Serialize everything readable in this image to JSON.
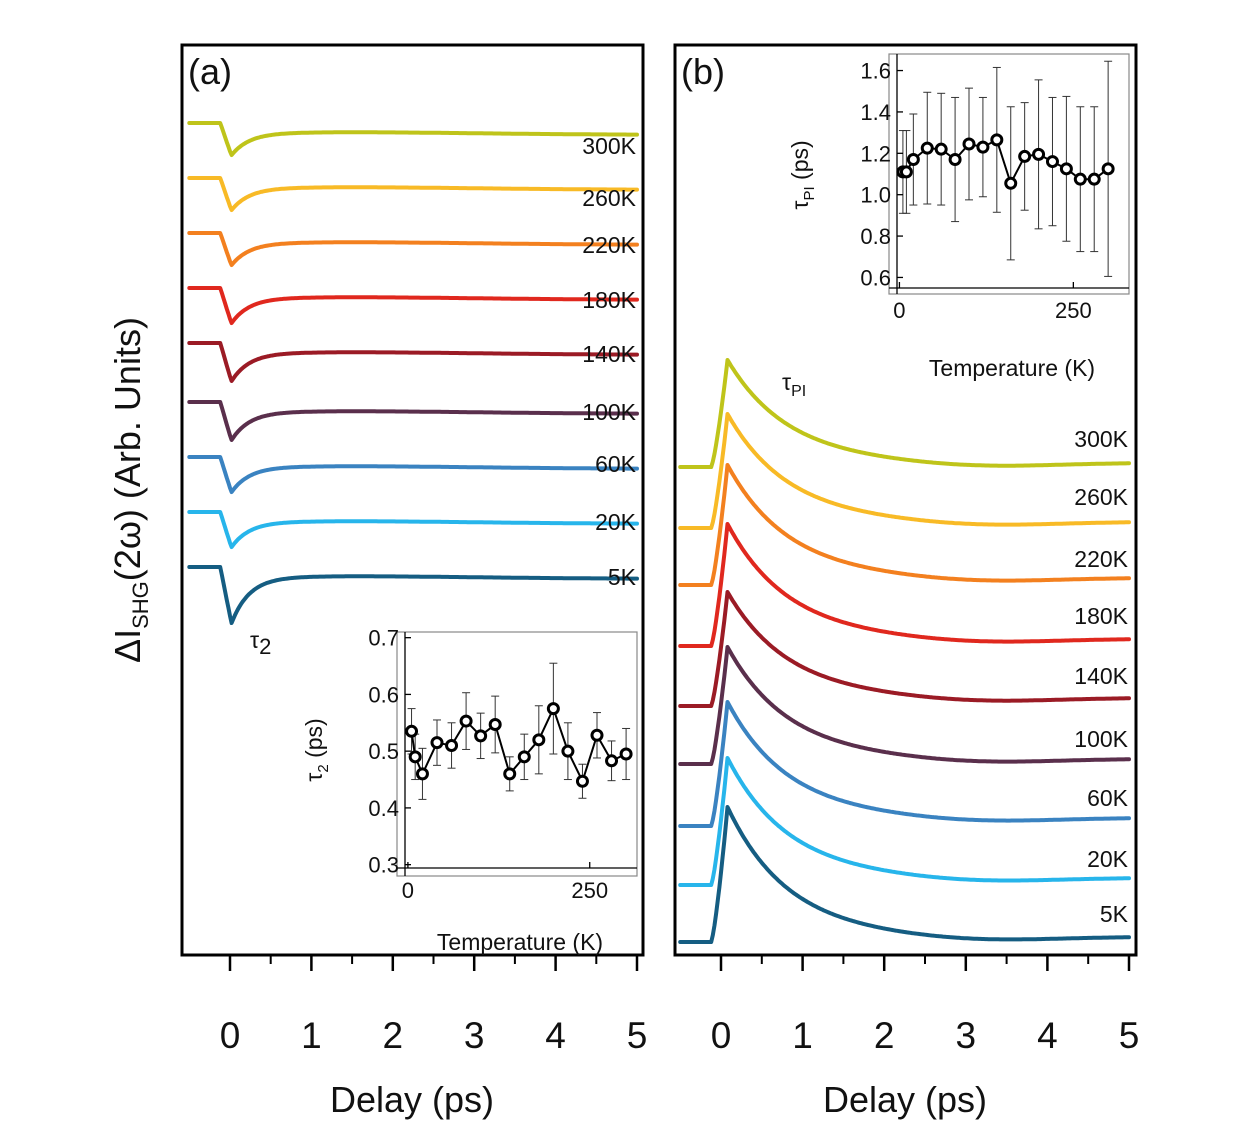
{
  "figure": {
    "ylabel": {
      "prefix": "ΔI",
      "sub": "SHG",
      "suffix": "(2ω) (Arb. Units)"
    }
  },
  "panel_a": {
    "label": "(a)",
    "xlabel": "Delay (ps)",
    "xticks": [
      "0",
      "1",
      "2",
      "3",
      "4",
      "5"
    ],
    "tau_label": "τ",
    "tau_sub": "2",
    "inset": {
      "ylabel": "τ",
      "ylabel_sub": "2",
      "ylabel_unit": " (ps)",
      "xlabel": "Temperature (K)",
      "xticks": [
        "0",
        "250"
      ],
      "yticks": [
        "0.3",
        "0.4",
        "0.5",
        "0.6",
        "0.7"
      ]
    }
  },
  "panel_b": {
    "label": "(b)",
    "xlabel": "Delay (ps)",
    "xticks": [
      "0",
      "1",
      "2",
      "3",
      "4",
      "5"
    ],
    "tau_label": "τ",
    "tau_sub": "PI",
    "inset": {
      "ylabel": "τ",
      "ylabel_sub": "PI",
      "ylabel_unit": " (ps)",
      "xlabel": "Temperature (K)",
      "xticks": [
        "0",
        "250"
      ],
      "yticks": [
        "0.6",
        "0.8",
        "1.0",
        "1.2",
        "1.4",
        "1.6"
      ]
    }
  },
  "colors": {
    "300K": "#bfc41a",
    "260K": "#f8ba26",
    "220K": "#f3801f",
    "180K": "#e0281e",
    "140K": "#9b1b25",
    "100K": "#5a2f4c",
    "60K": "#3a83c1",
    "20K": "#27b5eb",
    "5K": "#155d82"
  },
  "chart_data": [
    {
      "type": "line",
      "panel": "a",
      "xlabel": "Delay (ps)",
      "ylabel": "ΔI_SHG(2ω) (Arb. Units)",
      "xlim": [
        -0.6,
        5
      ],
      "series": [
        {
          "name": "300K",
          "offset": 8,
          "dip_depth": 0.55,
          "level": -0.18
        },
        {
          "name": "260K",
          "offset": 7,
          "dip_depth": 0.55,
          "level": -0.18
        },
        {
          "name": "220K",
          "offset": 6,
          "dip_depth": 0.55,
          "level": -0.18
        },
        {
          "name": "180K",
          "offset": 5,
          "dip_depth": 0.6,
          "level": -0.18
        },
        {
          "name": "140K",
          "offset": 4,
          "dip_depth": 0.65,
          "level": -0.18
        },
        {
          "name": "100K",
          "offset": 3,
          "dip_depth": 0.65,
          "level": -0.18
        },
        {
          "name": "60K",
          "offset": 2,
          "dip_depth": 0.6,
          "level": -0.18
        },
        {
          "name": "20K",
          "offset": 1,
          "dip_depth": 0.6,
          "level": -0.18
        },
        {
          "name": "5K",
          "offset": 0,
          "dip_depth": 0.95,
          "level": -0.18
        }
      ]
    },
    {
      "type": "scatter",
      "panel": "a-inset",
      "xlabel": "Temperature (K)",
      "ylabel": "τ2 (ps)",
      "xlim": [
        -15,
        315
      ],
      "ylim": [
        0.28,
        0.71
      ],
      "x": [
        5,
        10,
        20,
        40,
        60,
        80,
        100,
        120,
        140,
        160,
        180,
        200,
        220,
        240,
        260,
        280,
        300
      ],
      "y": [
        0.535,
        0.49,
        0.46,
        0.515,
        0.51,
        0.553,
        0.527,
        0.547,
        0.46,
        0.49,
        0.52,
        0.575,
        0.5,
        0.447,
        0.528,
        0.483,
        0.495
      ],
      "yerr": [
        0.04,
        0.04,
        0.045,
        0.04,
        0.04,
        0.05,
        0.04,
        0.05,
        0.03,
        0.04,
        0.06,
        0.08,
        0.05,
        0.03,
        0.04,
        0.035,
        0.045
      ]
    },
    {
      "type": "line",
      "panel": "b",
      "xlabel": "Delay (ps)",
      "ylabel": "ΔI_SHG(2ω) (Arb. Units)",
      "xlim": [
        -0.5,
        5
      ],
      "series": [
        {
          "name": "300K",
          "offset": 8,
          "peak": 1.0,
          "tail": 0.0
        },
        {
          "name": "260K",
          "offset": 7,
          "peak": 1.0,
          "tail": 0.0
        },
        {
          "name": "220K",
          "offset": 6,
          "peak": 1.0,
          "tail": 0.0
        },
        {
          "name": "180K",
          "offset": 5,
          "peak": 1.0,
          "tail": 0.0
        },
        {
          "name": "140K",
          "offset": 4,
          "peak": 1.0,
          "tail": 0.0
        },
        {
          "name": "100K",
          "offset": 3,
          "peak": 1.0,
          "tail": 0.0
        },
        {
          "name": "60K",
          "offset": 2,
          "peak": 1.0,
          "tail": 0.0
        },
        {
          "name": "20K",
          "offset": 1,
          "peak": 1.0,
          "tail": 0.0
        },
        {
          "name": "5K",
          "offset": 0,
          "peak": 1.0,
          "tail": 0.0
        }
      ]
    },
    {
      "type": "scatter",
      "panel": "b-inset",
      "xlabel": "Temperature (K)",
      "ylabel": "τPI (ps)",
      "xlim": [
        -15,
        330
      ],
      "ylim": [
        0.52,
        1.68
      ],
      "x": [
        5,
        10,
        20,
        40,
        60,
        80,
        100,
        120,
        140,
        160,
        180,
        200,
        220,
        240,
        260,
        280,
        300
      ],
      "y": [
        1.11,
        1.11,
        1.17,
        1.225,
        1.22,
        1.17,
        1.245,
        1.23,
        1.265,
        1.055,
        1.185,
        1.195,
        1.16,
        1.125,
        1.075,
        1.075,
        1.125
      ],
      "yerr": [
        0.2,
        0.2,
        0.22,
        0.27,
        0.27,
        0.3,
        0.27,
        0.24,
        0.35,
        0.37,
        0.26,
        0.36,
        0.31,
        0.35,
        0.35,
        0.35,
        0.52
      ]
    }
  ]
}
